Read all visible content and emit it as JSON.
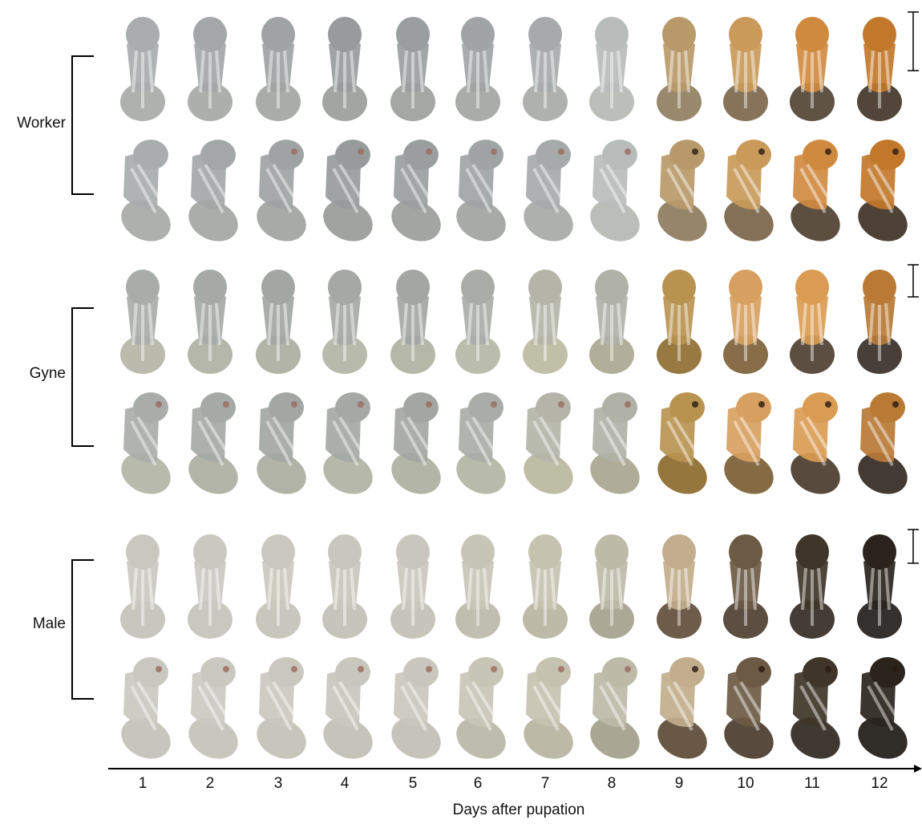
{
  "castes": [
    "Worker",
    "Gyne",
    "Male"
  ],
  "days": [
    1,
    2,
    3,
    4,
    5,
    6,
    7,
    8,
    9,
    10,
    11,
    12
  ],
  "x_axis_label": "Days after pupation"
}
